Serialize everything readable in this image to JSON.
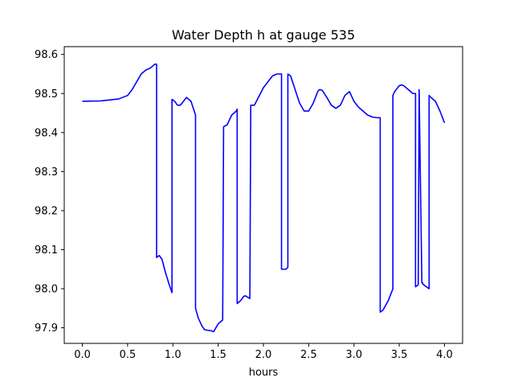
{
  "chart_data": {
    "type": "line",
    "title": "Water Depth h at gauge 535",
    "xlabel": "hours",
    "ylabel": "",
    "xlim": [
      -0.2,
      4.2
    ],
    "ylim": [
      97.86,
      98.62
    ],
    "grid": false,
    "legend": "none",
    "xticks": [
      0.0,
      0.5,
      1.0,
      1.5,
      2.0,
      2.5,
      3.0,
      3.5,
      4.0
    ],
    "xtick_labels": [
      "0.0",
      "0.5",
      "1.0",
      "1.5",
      "2.0",
      "2.5",
      "3.0",
      "3.5",
      "4.0"
    ],
    "yticks": [
      97.9,
      98.0,
      98.1,
      98.2,
      98.3,
      98.4,
      98.5,
      98.6
    ],
    "ytick_labels": [
      "97.9",
      "98.0",
      "98.1",
      "98.2",
      "98.3",
      "98.4",
      "98.5",
      "98.6"
    ],
    "series": [
      {
        "color": "#0000ff",
        "x": [
          0.0,
          0.2,
          0.4,
          0.5,
          0.55,
          0.6,
          0.65,
          0.7,
          0.75,
          0.8,
          0.82,
          0.82,
          0.85,
          0.88,
          0.92,
          0.96,
          0.99,
          0.99,
          1.02,
          1.05,
          1.08,
          1.1,
          1.15,
          1.2,
          1.25,
          1.25,
          1.28,
          1.32,
          1.35,
          1.4,
          1.43,
          1.45,
          1.5,
          1.55,
          1.56,
          1.6,
          1.65,
          1.7,
          1.71,
          1.71,
          1.75,
          1.78,
          1.8,
          1.85,
          1.86,
          1.9,
          2.0,
          2.1,
          2.15,
          2.2,
          2.2,
          2.25,
          2.27,
          2.27,
          2.3,
          2.35,
          2.4,
          2.45,
          2.5,
          2.55,
          2.6,
          2.62,
          2.65,
          2.7,
          2.75,
          2.8,
          2.85,
          2.9,
          2.95,
          3.0,
          3.05,
          3.1,
          3.15,
          3.2,
          3.25,
          3.29,
          3.29,
          3.32,
          3.38,
          3.43,
          3.43,
          3.45,
          3.5,
          3.53,
          3.55,
          3.6,
          3.65,
          3.68,
          3.68,
          3.71,
          3.72,
          3.72,
          3.75,
          3.76,
          3.76,
          3.8,
          3.83,
          3.83,
          3.85,
          3.9,
          3.95,
          4.0
        ],
        "y": [
          98.48,
          98.481,
          98.486,
          98.495,
          98.51,
          98.53,
          98.55,
          98.56,
          98.565,
          98.575,
          98.575,
          98.08,
          98.085,
          98.075,
          98.04,
          98.01,
          97.99,
          98.485,
          98.48,
          98.47,
          98.47,
          98.475,
          98.49,
          98.48,
          98.445,
          97.95,
          97.925,
          97.905,
          97.895,
          97.893,
          97.892,
          97.89,
          97.91,
          97.92,
          98.415,
          98.42,
          98.445,
          98.455,
          98.46,
          97.962,
          97.97,
          97.98,
          97.982,
          97.975,
          98.47,
          98.47,
          98.515,
          98.545,
          98.55,
          98.55,
          98.05,
          98.05,
          98.055,
          98.55,
          98.545,
          98.51,
          98.475,
          98.455,
          98.455,
          98.475,
          98.505,
          98.51,
          98.508,
          98.49,
          98.47,
          98.462,
          98.47,
          98.495,
          98.505,
          98.48,
          98.465,
          98.455,
          98.445,
          98.44,
          98.438,
          98.438,
          97.94,
          97.945,
          97.97,
          98.0,
          98.495,
          98.505,
          98.52,
          98.522,
          98.52,
          98.51,
          98.5,
          98.5,
          98.005,
          98.01,
          98.51,
          98.51,
          98.015,
          98.015,
          98.012,
          98.005,
          98.0,
          98.495,
          98.49,
          98.48,
          98.455,
          98.425
        ]
      }
    ]
  }
}
